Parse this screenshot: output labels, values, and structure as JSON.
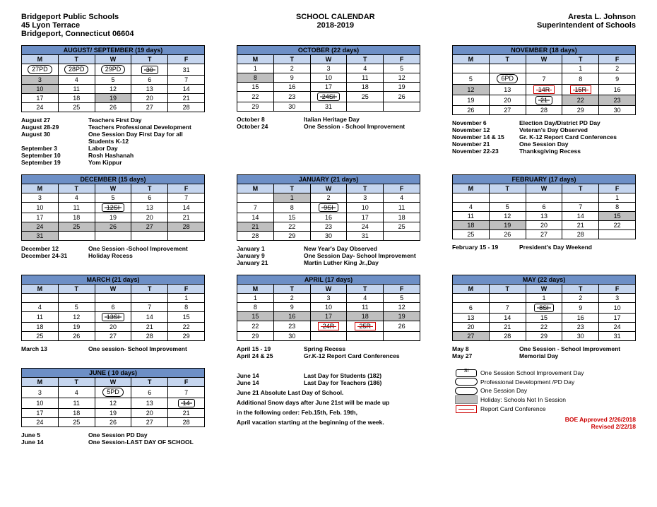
{
  "header": {
    "left": [
      "Bridgeport Public Schools",
      "45 Lyon Terrace",
      "Bridgeport, Connecticut 06604"
    ],
    "center": [
      "SCHOOL CALENDAR",
      "2018-2019"
    ],
    "right": [
      "Aresta L. Johnson",
      "Superintendent of Schools"
    ]
  },
  "months": [
    {
      "title": "AUGUST/ SEPTEMBER (19 days)",
      "rows": [
        [
          {
            "t": "27PD",
            "s": "oval"
          },
          {
            "t": "28PD",
            "s": "oval"
          },
          {
            "t": "29PD",
            "s": "oval"
          },
          {
            "t": "30",
            "s": "pill"
          },
          {
            "t": "31"
          }
        ],
        [
          {
            "t": "3",
            "sh": 1
          },
          {
            "t": "4"
          },
          {
            "t": "5"
          },
          {
            "t": "6"
          },
          {
            "t": "7"
          }
        ],
        [
          {
            "t": "10",
            "sh": 1
          },
          {
            "t": "11"
          },
          {
            "t": "12"
          },
          {
            "t": "13"
          },
          {
            "t": "14"
          }
        ],
        [
          {
            "t": "17"
          },
          {
            "t": "18"
          },
          {
            "t": "19",
            "sh": 1
          },
          {
            "t": "20"
          },
          {
            "t": "21"
          }
        ],
        [
          {
            "t": "24"
          },
          {
            "t": "25"
          },
          {
            "t": "26"
          },
          {
            "t": "27"
          },
          {
            "t": "28"
          }
        ]
      ],
      "events": [
        {
          "d": "August 27",
          "t": "Teachers First Day"
        },
        {
          "d": "August 28-29",
          "t": "Teachers Professional Development"
        },
        {
          "d": "August 30",
          "t": "One Session Day First Day for all Students K-12"
        },
        {
          "d": "September 3",
          "t": "Labor Day"
        },
        {
          "d": "September 10",
          "t": "Rosh Hashanah"
        },
        {
          "d": "September 19",
          "t": "Yom Kippur"
        }
      ]
    },
    {
      "title": "OCTOBER (22 days)",
      "rows": [
        [
          {
            "t": "1"
          },
          {
            "t": "2"
          },
          {
            "t": "3"
          },
          {
            "t": "4"
          },
          {
            "t": "5"
          }
        ],
        [
          {
            "t": "8",
            "sh": 1
          },
          {
            "t": "9"
          },
          {
            "t": "10"
          },
          {
            "t": "11"
          },
          {
            "t": "12"
          }
        ],
        [
          {
            "t": "15"
          },
          {
            "t": "16"
          },
          {
            "t": "17"
          },
          {
            "t": "18"
          },
          {
            "t": "19"
          }
        ],
        [
          {
            "t": "22"
          },
          {
            "t": "23"
          },
          {
            "t": "24SI",
            "s": "pill"
          },
          {
            "t": "25"
          },
          {
            "t": "26"
          }
        ],
        [
          {
            "t": "29"
          },
          {
            "t": "30"
          },
          {
            "t": "31"
          },
          {
            "t": ""
          },
          {
            "t": ""
          }
        ]
      ],
      "events": [
        {
          "d": "October 8",
          "t": "Italian Heritage Day"
        },
        {
          "d": "October 24",
          "t": "One Session - School Improvement"
        }
      ]
    },
    {
      "title": "NOVEMBER  (18 days)",
      "rows": [
        [
          {
            "t": ""
          },
          {
            "t": ""
          },
          {
            "t": ""
          },
          {
            "t": "1"
          },
          {
            "t": "2"
          }
        ],
        [
          {
            "t": "5"
          },
          {
            "t": "6PD",
            "s": "oval"
          },
          {
            "t": "7"
          },
          {
            "t": "8"
          },
          {
            "t": "9"
          }
        ],
        [
          {
            "t": "12",
            "sh": 1
          },
          {
            "t": "13"
          },
          {
            "t": "14R",
            "s": "boxred"
          },
          {
            "t": "15R",
            "s": "boxred"
          },
          {
            "t": "16"
          }
        ],
        [
          {
            "t": "19"
          },
          {
            "t": "20"
          },
          {
            "t": "21",
            "s": "pill"
          },
          {
            "t": "22",
            "sh": 1
          },
          {
            "t": "23",
            "sh": 1
          }
        ],
        [
          {
            "t": "26"
          },
          {
            "t": "27"
          },
          {
            "t": "28"
          },
          {
            "t": "29"
          },
          {
            "t": "30"
          }
        ]
      ],
      "events": [
        {
          "d": "November 6",
          "t": "Election Day/District PD Day"
        },
        {
          "d": "November 12",
          "t": "Veteran's Day Observed"
        },
        {
          "d": "November 14 & 15",
          "t": "Gr. K-12 Report Card Conferences"
        },
        {
          "d": "November 21",
          "t": "One Session Day"
        },
        {
          "d": "November 22-23",
          "t": "Thanksgiving Recess"
        }
      ]
    },
    {
      "title": "DECEMBER (15 days)",
      "rows": [
        [
          {
            "t": "3"
          },
          {
            "t": "4"
          },
          {
            "t": "5"
          },
          {
            "t": "6"
          },
          {
            "t": "7"
          }
        ],
        [
          {
            "t": "10"
          },
          {
            "t": "11"
          },
          {
            "t": "12SI",
            "s": "pill"
          },
          {
            "t": "13"
          },
          {
            "t": "14"
          }
        ],
        [
          {
            "t": "17"
          },
          {
            "t": "18"
          },
          {
            "t": "19"
          },
          {
            "t": "20"
          },
          {
            "t": "21"
          }
        ],
        [
          {
            "t": "24",
            "sh": 1
          },
          {
            "t": "25",
            "sh": 1
          },
          {
            "t": "26",
            "sh": 1
          },
          {
            "t": "27",
            "sh": 1
          },
          {
            "t": "28",
            "sh": 1
          }
        ],
        [
          {
            "t": "31",
            "sh": 1
          },
          {
            "t": ""
          },
          {
            "t": ""
          },
          {
            "t": ""
          },
          {
            "t": ""
          }
        ]
      ],
      "events": [
        {
          "d": "December 12",
          "t": "One Session -School Improvement"
        },
        {
          "d": "December  24-31",
          "t": "Holiday Recess"
        }
      ]
    },
    {
      "title": "JANUARY (21 days)",
      "rows": [
        [
          {
            "t": ""
          },
          {
            "t": "1",
            "sh": 1
          },
          {
            "t": "2"
          },
          {
            "t": "3"
          },
          {
            "t": "4"
          }
        ],
        [
          {
            "t": "7"
          },
          {
            "t": "8"
          },
          {
            "t": "9SI",
            "s": "pill"
          },
          {
            "t": "10"
          },
          {
            "t": "11"
          }
        ],
        [
          {
            "t": "14"
          },
          {
            "t": "15"
          },
          {
            "t": "16"
          },
          {
            "t": "17"
          },
          {
            "t": "18"
          }
        ],
        [
          {
            "t": "21",
            "sh": 1
          },
          {
            "t": "22"
          },
          {
            "t": "23"
          },
          {
            "t": "24"
          },
          {
            "t": "25"
          }
        ],
        [
          {
            "t": "28"
          },
          {
            "t": "29"
          },
          {
            "t": "30"
          },
          {
            "t": "31"
          },
          {
            "t": ""
          }
        ]
      ],
      "events": [
        {
          "d": "January 1",
          "t": "New Year's Day Observed"
        },
        {
          "d": "January 9",
          "t": "One Session Day- School Improvement"
        },
        {
          "d": "January 21",
          "t": "Martin Luther King Jr.,Day"
        }
      ]
    },
    {
      "title": "FEBRUARY (17 days)",
      "rows": [
        [
          {
            "t": ""
          },
          {
            "t": ""
          },
          {
            "t": ""
          },
          {
            "t": ""
          },
          {
            "t": "1"
          }
        ],
        [
          {
            "t": "4"
          },
          {
            "t": "5"
          },
          {
            "t": "6"
          },
          {
            "t": "7"
          },
          {
            "t": "8"
          }
        ],
        [
          {
            "t": "11"
          },
          {
            "t": "12"
          },
          {
            "t": "13"
          },
          {
            "t": "14"
          },
          {
            "t": "15",
            "sh": 1
          }
        ],
        [
          {
            "t": "18",
            "sh": 1
          },
          {
            "t": "19",
            "sh": 1
          },
          {
            "t": "20"
          },
          {
            "t": "21"
          },
          {
            "t": "22"
          }
        ],
        [
          {
            "t": "25"
          },
          {
            "t": "26"
          },
          {
            "t": "27"
          },
          {
            "t": "28"
          },
          {
            "t": ""
          }
        ]
      ],
      "events": [
        {
          "d": "February 15 - 19",
          "t": "President's Day Weekend"
        }
      ]
    },
    {
      "title": "MARCH (21 days)",
      "rows": [
        [
          {
            "t": ""
          },
          {
            "t": ""
          },
          {
            "t": ""
          },
          {
            "t": ""
          },
          {
            "t": "1"
          }
        ],
        [
          {
            "t": "4"
          },
          {
            "t": "5"
          },
          {
            "t": "6"
          },
          {
            "t": "7"
          },
          {
            "t": "8"
          }
        ],
        [
          {
            "t": "11"
          },
          {
            "t": "12"
          },
          {
            "t": "13SI",
            "s": "pill"
          },
          {
            "t": "14"
          },
          {
            "t": "15"
          }
        ],
        [
          {
            "t": "18"
          },
          {
            "t": "19"
          },
          {
            "t": "20"
          },
          {
            "t": "21"
          },
          {
            "t": "22"
          }
        ],
        [
          {
            "t": "25"
          },
          {
            "t": "26"
          },
          {
            "t": "27"
          },
          {
            "t": "28"
          },
          {
            "t": "29"
          }
        ]
      ],
      "events": [
        {
          "d": "March 13",
          "t": "One session- School Improvement"
        }
      ]
    },
    {
      "title": "APRIL (17 days)",
      "rows": [
        [
          {
            "t": "1"
          },
          {
            "t": "2"
          },
          {
            "t": "3"
          },
          {
            "t": "4"
          },
          {
            "t": "5"
          }
        ],
        [
          {
            "t": "8"
          },
          {
            "t": "9"
          },
          {
            "t": "10"
          },
          {
            "t": "11"
          },
          {
            "t": "12"
          }
        ],
        [
          {
            "t": "15",
            "sh": 1
          },
          {
            "t": "16",
            "sh": 1
          },
          {
            "t": "17",
            "sh": 1
          },
          {
            "t": "18",
            "sh": 1
          },
          {
            "t": "19",
            "sh": 1
          }
        ],
        [
          {
            "t": "22"
          },
          {
            "t": "23"
          },
          {
            "t": "24R",
            "s": "boxred"
          },
          {
            "t": "25R",
            "s": "boxred"
          },
          {
            "t": "26"
          }
        ],
        [
          {
            "t": "29"
          },
          {
            "t": "30"
          },
          {
            "t": ""
          },
          {
            "t": ""
          },
          {
            "t": ""
          }
        ]
      ],
      "events": [
        {
          "d": "April 15 - 19",
          "t": "Spring Recess"
        },
        {
          "d": "April 24 & 25",
          "t": "Gr.K-12 Report Card Conferences"
        }
      ]
    },
    {
      "title": "MAY (22 days)",
      "rows": [
        [
          {
            "t": ""
          },
          {
            "t": ""
          },
          {
            "t": "1"
          },
          {
            "t": "2"
          },
          {
            "t": "3"
          }
        ],
        [
          {
            "t": "6"
          },
          {
            "t": "7"
          },
          {
            "t": "8SI",
            "s": "pill"
          },
          {
            "t": "9"
          },
          {
            "t": "10"
          }
        ],
        [
          {
            "t": "13"
          },
          {
            "t": "14"
          },
          {
            "t": "15"
          },
          {
            "t": "16"
          },
          {
            "t": "17"
          }
        ],
        [
          {
            "t": "20"
          },
          {
            "t": "21"
          },
          {
            "t": "22"
          },
          {
            "t": "23"
          },
          {
            "t": "24"
          }
        ],
        [
          {
            "t": "27",
            "sh": 1
          },
          {
            "t": "28"
          },
          {
            "t": "29"
          },
          {
            "t": "30"
          },
          {
            "t": "31"
          }
        ]
      ],
      "events": [
        {
          "d": "May 8",
          "t": "One Session - School Improvement"
        },
        {
          "d": "May 27",
          "t": "Memorial Day"
        }
      ]
    },
    {
      "title": "JUNE ( 10 days)",
      "rows": [
        [
          {
            "t": "3"
          },
          {
            "t": "4"
          },
          {
            "t": "5PD",
            "s": "oval"
          },
          {
            "t": "6"
          },
          {
            "t": "7"
          }
        ],
        [
          {
            "t": "10"
          },
          {
            "t": "11"
          },
          {
            "t": "12"
          },
          {
            "t": "13"
          },
          {
            "t": "14",
            "s": "pill"
          }
        ],
        [
          {
            "t": "17"
          },
          {
            "t": "18"
          },
          {
            "t": "19"
          },
          {
            "t": "20"
          },
          {
            "t": "21"
          }
        ],
        [
          {
            "t": "24"
          },
          {
            "t": "25"
          },
          {
            "t": "26"
          },
          {
            "t": "27"
          },
          {
            "t": "28"
          }
        ]
      ],
      "events": [
        {
          "d": "June 5",
          "t": "One Session PD Day"
        },
        {
          "d": "June 14",
          "t": "One Session-LAST DAY OF SCHOOL"
        }
      ]
    }
  ],
  "juneCenter": {
    "events": [
      {
        "d": "June 14",
        "t": "Last Day for Students (182)"
      },
      {
        "d": "June 14",
        "t": "Last Day for Teachers (186)"
      }
    ],
    "notes": [
      "June  21 Absolute Last Day of School.",
      "Additional Snow days after June 21st will be made up",
      "in the following order: Feb.15th, Feb. 19th,",
      "April vacation starting at the beginning of the week."
    ]
  },
  "legend": [
    {
      "sym": "pill",
      "t": "One Session School Improvement Day"
    },
    {
      "sym": "oval",
      "t": "Professional Development /PD Day"
    },
    {
      "sym": "ovalline",
      "t": "One Session Day"
    },
    {
      "sym": "shade",
      "t": "Holiday: Schools Not In Session"
    },
    {
      "sym": "box",
      "t": "Report Card Conference"
    }
  ],
  "approved": [
    "BOE Approved 2/26/2018",
    "Revised 2/22/18"
  ],
  "dow": [
    "M",
    "T",
    "W",
    "T",
    "F"
  ],
  "colors": {
    "title": "#6d8fc6",
    "dow": "#c5d5ee",
    "shade": "#bfbfbf",
    "red": "#c00000"
  }
}
